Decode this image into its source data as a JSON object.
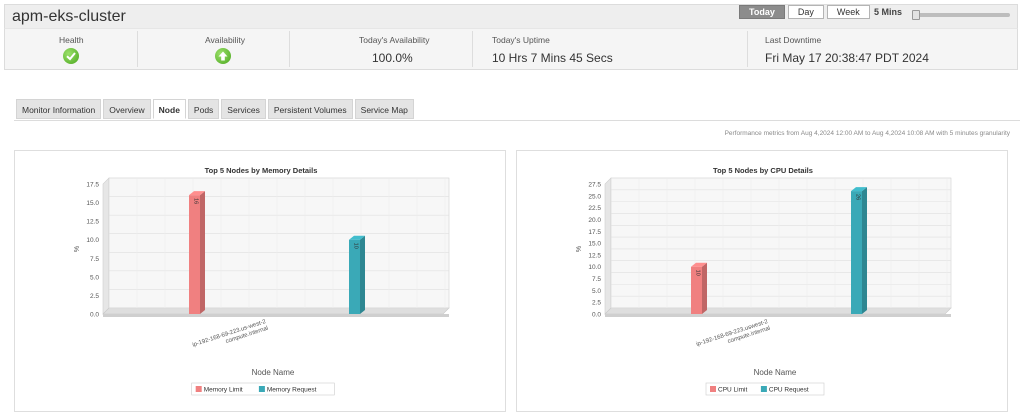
{
  "header": {
    "title": "apm-eks-cluster",
    "periods": [
      "Today",
      "Day",
      "Week"
    ],
    "active_period": "Today",
    "interval": "5 Mins"
  },
  "stats": {
    "health_label": "Health",
    "availability_label": "Availability",
    "todays_availability_label": "Today's Availability",
    "todays_availability_value": "100.0%",
    "uptime_label": "Today's Uptime",
    "uptime_value": "10 Hrs 7 Mins 45 Secs",
    "downtime_label": "Last Downtime",
    "downtime_value": "Fri May 17 20:38:47 PDT 2024"
  },
  "tabs": [
    "Monitor Information",
    "Overview",
    "Node",
    "Pods",
    "Services",
    "Persistent Volumes",
    "Service Map"
  ],
  "active_tab": "Node",
  "perf_note": "Performance metrics from Aug 4,2024 12:00 AM to Aug 4,2024 10:08 AM with 5 minutes granularity",
  "colors": {
    "series1": "#f08080",
    "series2": "#3aa9b7",
    "ok": "#5cb82e"
  },
  "chart_data": [
    {
      "type": "bar",
      "title": "Top 5 Nodes by Memory Details",
      "ylabel": "%",
      "xlabel": "Node Name",
      "categories": [
        "ip-192-168-69-223.us-west-2.compute.internal"
      ],
      "category_lines": [
        "ip-192-168-69-223.us-west-2",
        "compute.internal"
      ],
      "series": [
        {
          "name": "Memory Limit",
          "values": [
            16.0
          ],
          "label": "16"
        },
        {
          "name": "Memory Request",
          "values": [
            10.0
          ],
          "label": "10"
        }
      ],
      "ylim": [
        0,
        17.5
      ],
      "yticks": [
        "17.5",
        "15.0",
        "12.5",
        "10.0",
        "7.5",
        "5.0",
        "2.5",
        "0.0"
      ],
      "grid": true,
      "legend": "bottom"
    },
    {
      "type": "bar",
      "title": "Top 5 Nodes by CPU Details",
      "ylabel": "%",
      "xlabel": "Node Name",
      "categories": [
        "ip-192-168-69-223.uswest-2.compute.internal"
      ],
      "category_lines": [
        "ip-192-168-69-223.uswest-2",
        "compute.internal"
      ],
      "series": [
        {
          "name": "CPU Limit",
          "values": [
            10.0
          ],
          "label": "10"
        },
        {
          "name": "CPU Request",
          "values": [
            26.0
          ],
          "label": "26"
        }
      ],
      "ylim": [
        0,
        27.5
      ],
      "yticks": [
        "27.5",
        "25.0",
        "22.5",
        "20.0",
        "17.5",
        "15.0",
        "12.5",
        "10.0",
        "7.5",
        "5.0",
        "2.5",
        "0.0"
      ],
      "grid": true,
      "legend": "bottom"
    }
  ]
}
